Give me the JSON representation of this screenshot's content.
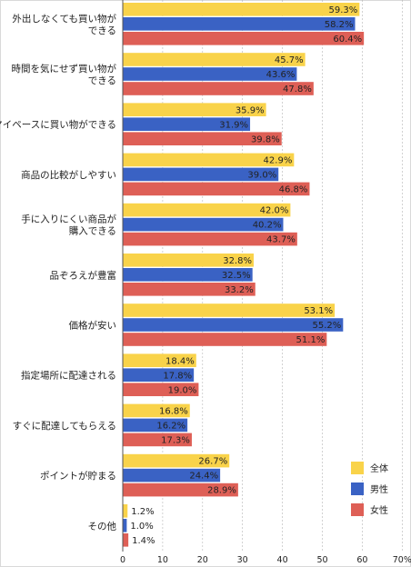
{
  "chart_data": {
    "type": "bar",
    "orientation": "horizontal",
    "categories": [
      [
        "外出しなくても買い物が",
        "できる"
      ],
      [
        "時間を気にせず買い物が",
        "できる"
      ],
      [
        "マイペースに買い物ができる"
      ],
      [
        "商品の比較がしやすい"
      ],
      [
        "手に入りにくい商品が",
        "購入できる"
      ],
      [
        "品ぞろえが豊富"
      ],
      [
        "価格が安い"
      ],
      [
        "指定場所に配達される"
      ],
      [
        "すぐに配達してもらえる"
      ],
      [
        "ポイントが貯まる"
      ],
      [
        "その他"
      ]
    ],
    "series": [
      {
        "name": "全体",
        "color": "#F9D34A",
        "values": [
          59.3,
          45.7,
          35.9,
          42.9,
          42.0,
          32.8,
          53.1,
          18.4,
          16.8,
          26.7,
          1.2
        ],
        "labels": [
          "59.3%",
          "45.7%",
          "35.9%",
          "42.9%",
          "42.0%",
          "32.8%",
          "53.1%",
          "18.4%",
          "16.8%",
          "26.7%",
          "1.2%"
        ]
      },
      {
        "name": "男性",
        "color": "#3A62C4",
        "values": [
          58.2,
          43.6,
          31.9,
          39.0,
          40.2,
          32.5,
          55.2,
          17.8,
          16.2,
          24.4,
          1.0
        ],
        "labels": [
          "58.2%",
          "43.6%",
          "31.9%",
          "39.0%",
          "40.2%",
          "32.5%",
          "55.2%",
          "17.8%",
          "16.2%",
          "24.4%",
          "1.0%"
        ]
      },
      {
        "name": "女性",
        "color": "#DE5F56",
        "values": [
          60.4,
          47.8,
          39.8,
          46.8,
          43.7,
          33.2,
          51.1,
          19.0,
          17.3,
          28.9,
          1.4
        ],
        "labels": [
          "60.4%",
          "47.8%",
          "39.8%",
          "46.8%",
          "43.7%",
          "33.2%",
          "51.1%",
          "19.0%",
          "17.3%",
          "28.9%",
          "1.4%"
        ]
      }
    ],
    "xlim": [
      0,
      70
    ],
    "xticks": [
      0,
      10,
      20,
      30,
      40,
      50,
      60,
      70
    ],
    "xtick_labels": [
      "0",
      "10",
      "20",
      "30",
      "40",
      "50",
      "60",
      "70%"
    ],
    "grid": true,
    "legend_position": "bottom-right"
  }
}
